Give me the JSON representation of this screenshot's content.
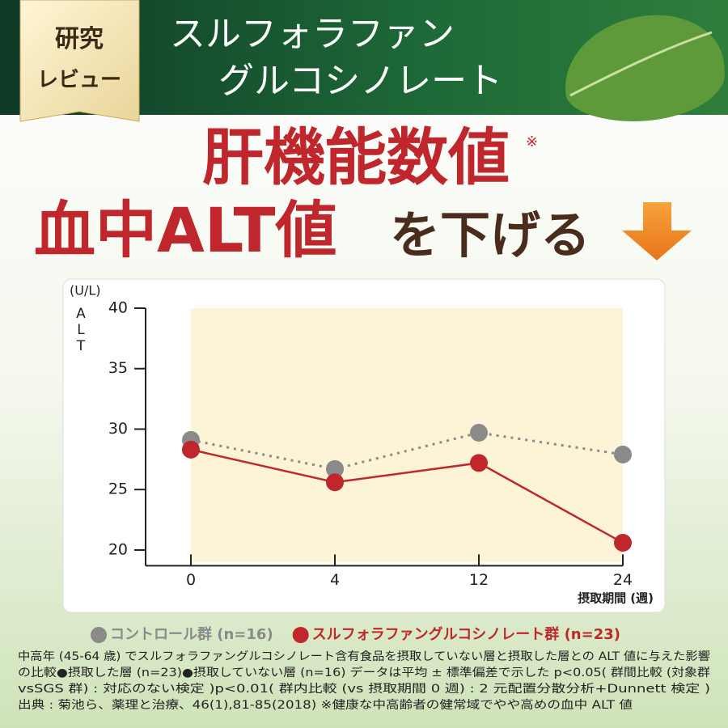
{
  "badge": {
    "line1": "研究",
    "line2": "レビュー"
  },
  "header": {
    "line1": "スルフォラファン",
    "line2": "グルコシノレート"
  },
  "headline": {
    "line1": "肝機能数値",
    "mark": "※",
    "line2_red": "血中ALT値",
    "line2_dark": "を下げる"
  },
  "chart_data": {
    "type": "line",
    "y_unit": "(U/L)",
    "y_label": "ALT",
    "x_label": "摂取期間 (週)",
    "categories": [
      "0",
      "4",
      "12",
      "24"
    ],
    "series": [
      {
        "name": "コントロール群 (n=16)",
        "color": "#8a8a8a",
        "dashed": true,
        "values": [
          29.1,
          26.7,
          29.7,
          27.9
        ]
      },
      {
        "name": "スルフォラファングルコシノレート群 (n=23)",
        "color": "#c0272d",
        "dashed": false,
        "values": [
          28.3,
          25.6,
          27.2,
          20.6
        ]
      }
    ],
    "ylim": [
      18.7,
      40
    ],
    "yticks": [
      20,
      25,
      30,
      35,
      40
    ]
  },
  "footnote": [
    "中高年 (45-64 歳) でスルフォラファングルコシノレート含有食品を摂取していない層と摂取した層との ALT 値に与えた影響",
    "の比較●摂取した層 (n=23)●摂取していない層 (n=16) データは平均 ± 標準偏差で示した p<0.05( 群間比較 (対象群",
    "vsSGS 群) : 対応のない検定 )p<0.01( 群内比較 (vs 摂取期間 0 週) : 2 元配置分散分析+Dunnett 検定 )",
    "出典 : 菊池ら、薬理と治療、46(1),81-85(2018) ※健康な中高齢者の健常域でやや高めの血中 ALT 値"
  ]
}
